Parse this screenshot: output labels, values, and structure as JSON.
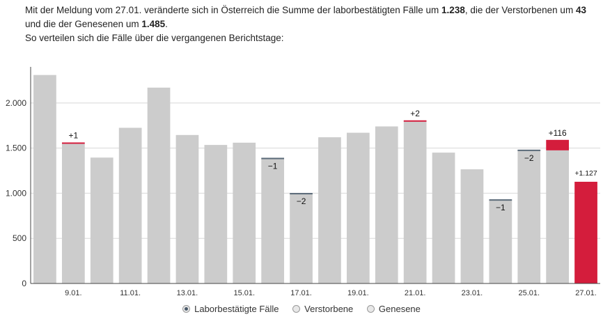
{
  "intro": {
    "p1": "Mit der Meldung vom 27.01. veränderte sich in Österreich die Summe der laborbestätigten Fälle um ",
    "v1": "1.238",
    "p2": ", die der Verstorbenen um ",
    "v2": "43",
    "p3": " und die der Genesenen um ",
    "v3": "1.485",
    "p4": ".",
    "line2": "So verteilen sich die Fälle über die vergangenen Berichtstage:"
  },
  "legend": [
    {
      "label": "Laborbestätigte Fälle",
      "selected": true
    },
    {
      "label": "Verstorbene",
      "selected": false
    },
    {
      "label": "Genesene",
      "selected": false
    }
  ],
  "colors": {
    "bar": "#cccccc",
    "accent": "#d41d3c",
    "neg": "#5a6a78",
    "grid": "#d8d8d8",
    "axis": "#444444"
  },
  "chart_data": {
    "type": "bar",
    "ylim": [
      0,
      2400
    ],
    "yticks": [
      0,
      500,
      1000,
      1500,
      2000
    ],
    "ytick_labels": [
      "0",
      "500",
      "1.000",
      "1.500",
      "2.000"
    ],
    "categories": [
      "",
      "9.01.",
      "",
      "11.01.",
      "",
      "13.01.",
      "",
      "15.01.",
      "",
      "17.01.",
      "",
      "19.01.",
      "",
      "21.01.",
      "",
      "23.01.",
      "",
      "25.01.",
      "",
      "27.01."
    ],
    "values": [
      2310,
      1555,
      1395,
      1725,
      2170,
      1645,
      1535,
      1560,
      1385,
      995,
      1620,
      1670,
      1740,
      1800,
      1450,
      1265,
      925,
      1475,
      1475,
      1127
    ],
    "deltas": [
      null,
      1,
      null,
      null,
      null,
      null,
      null,
      null,
      -1,
      -2,
      null,
      null,
      null,
      2,
      null,
      null,
      -1,
      -2,
      116,
      1127
    ],
    "delta_labels": [
      "",
      "+1",
      "",
      "",
      "",
      "",
      "",
      "",
      "−1",
      "−2",
      "",
      "",
      "",
      "+2",
      "",
      "",
      "−1",
      "−2",
      "+116",
      "+1.127"
    ]
  }
}
